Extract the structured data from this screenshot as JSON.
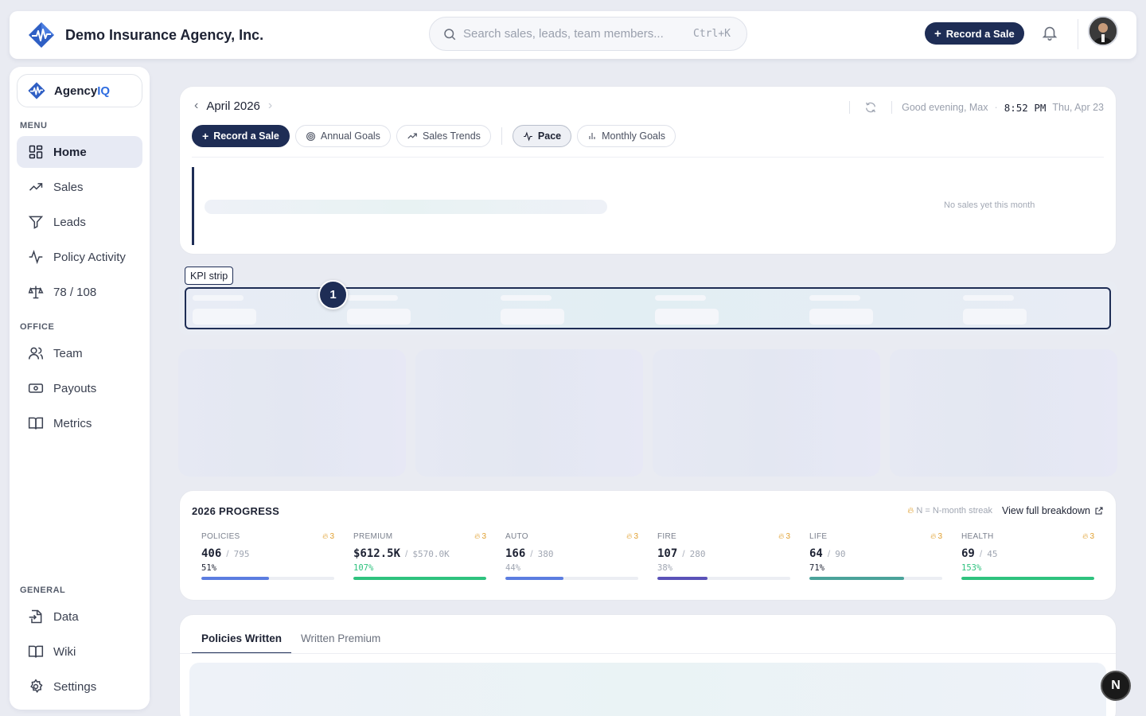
{
  "header": {
    "company": "Demo Insurance Agency, Inc.",
    "search_placeholder": "Search sales, leads, team members...",
    "search_shortcut": "Ctrl+K",
    "record_sale_label": "Record a Sale"
  },
  "sidebar": {
    "brand_prefix": "Agency",
    "brand_suffix": "IQ",
    "menu_heading": "MENU",
    "menu_items": [
      {
        "label": "Home",
        "icon": "grid-icon",
        "active": true
      },
      {
        "label": "Sales",
        "icon": "trending-up-icon"
      },
      {
        "label": "Leads",
        "icon": "funnel-icon"
      },
      {
        "label": "Policy Activity",
        "icon": "activity-icon"
      },
      {
        "label": "78 / 108",
        "icon": "scale-icon"
      }
    ],
    "office_heading": "OFFICE",
    "office_items": [
      {
        "label": "Team",
        "icon": "users-icon"
      },
      {
        "label": "Payouts",
        "icon": "banknote-icon"
      },
      {
        "label": "Metrics",
        "icon": "book-open-icon"
      }
    ],
    "general_heading": "GENERAL",
    "general_items": [
      {
        "label": "Data",
        "icon": "file-import-icon"
      },
      {
        "label": "Wiki",
        "icon": "book-icon"
      },
      {
        "label": "Settings",
        "icon": "gear-icon"
      }
    ]
  },
  "month_card": {
    "month": "April 2026",
    "greeting": "Good evening, Max",
    "time": "8:52 PM",
    "date": "Thu, Apr 23",
    "chips": {
      "record": "Record a Sale",
      "annual": "Annual Goals",
      "trends": "Sales Trends",
      "pace": "Pace",
      "monthly": "Monthly Goals"
    },
    "empty_text": "No sales yet this month"
  },
  "kpi": {
    "tag": "KPI strip",
    "badge": "1"
  },
  "progress": {
    "title": "2026 PROGRESS",
    "legend": "N = N-month streak",
    "link": "View full breakdown",
    "items": [
      {
        "label": "POLICIES",
        "streak": "3",
        "current": "406",
        "target": "795",
        "pct": "51%",
        "fraction": 0.51,
        "color": "#5b7de0",
        "pct_color": "#1d2233"
      },
      {
        "label": "PREMIUM",
        "streak": "3",
        "current": "$612.5K",
        "target": "$570.0K",
        "pct": "107%",
        "fraction": 1.0,
        "color": "#2ec27e",
        "pct_color": "#2ec27e"
      },
      {
        "label": "AUTO",
        "streak": "3",
        "current": "166",
        "target": "380",
        "pct": "44%",
        "fraction": 0.44,
        "color": "#5b7de0",
        "pct_color": "#a0a6b2"
      },
      {
        "label": "FIRE",
        "streak": "3",
        "current": "107",
        "target": "280",
        "pct": "38%",
        "fraction": 0.38,
        "color": "#5a52b8",
        "pct_color": "#a0a6b2"
      },
      {
        "label": "LIFE",
        "streak": "3",
        "current": "64",
        "target": "90",
        "pct": "71%",
        "fraction": 0.71,
        "color": "#4aa39a",
        "pct_color": "#1d2233"
      },
      {
        "label": "HEALTH",
        "streak": "3",
        "current": "69",
        "target": "45",
        "pct": "153%",
        "fraction": 1.0,
        "color": "#2ec27e",
        "pct_color": "#2ec27e"
      }
    ]
  },
  "bottom": {
    "tabs": [
      "Policies Written",
      "Written Premium"
    ]
  },
  "corner_badge": "N"
}
